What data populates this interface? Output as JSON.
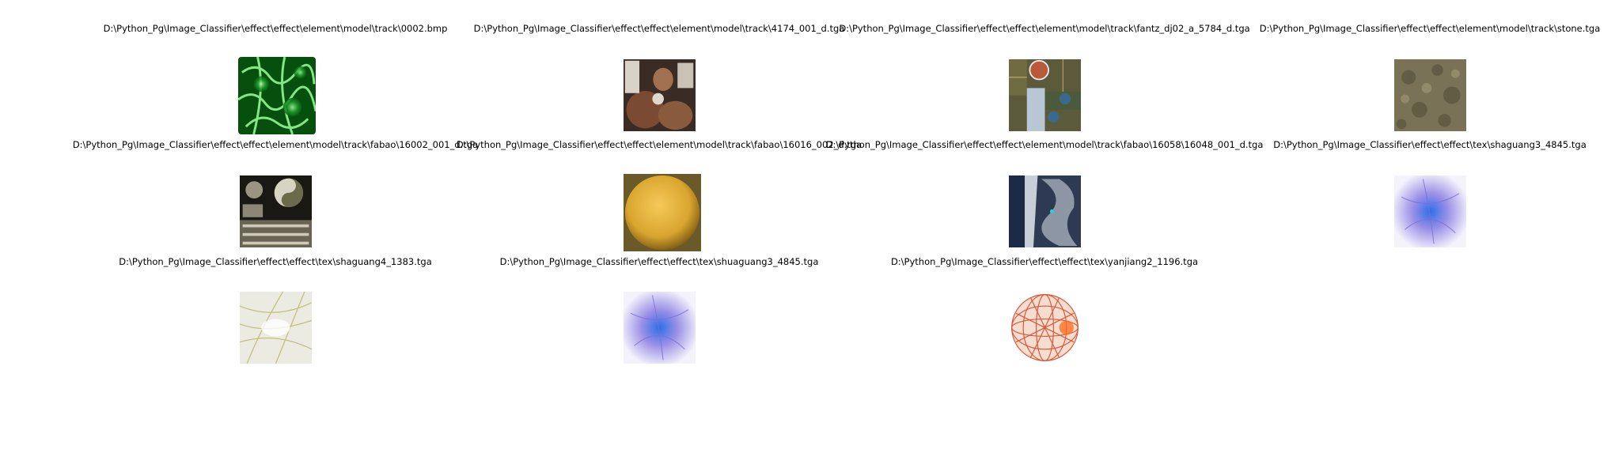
{
  "figure": {
    "items": [
      {
        "label": "D:\\Python_Pg\\Image_Classifier\\effect\\effect\\element\\model\\track\\0002.bmp",
        "thumbnail": "green-caustic-texture"
      },
      {
        "label": "D:\\Python_Pg\\Image_Classifier\\effect\\effect\\element\\model\\track\\4174_001_d.tga",
        "thumbnail": "pottery-atlas-texture"
      },
      {
        "label": "D:\\Python_Pg\\Image_Classifier\\effect\\effect\\element\\model\\track\\fantz_dj02_a_5784_d.tga",
        "thumbnail": "ornate-tile-atlas-texture"
      },
      {
        "label": "D:\\Python_Pg\\Image_Classifier\\effect\\effect\\element\\model\\track\\stone.tga",
        "thumbnail": "stone-texture"
      },
      {
        "label": "D:\\Python_Pg\\Image_Classifier\\effect\\effect\\element\\model\\track\\fabao\\16002_001_d.tga",
        "thumbnail": "yin-yang-atlas-texture"
      },
      {
        "label": "D:\\Python_Pg\\Image_Classifier\\effect\\effect\\element\\model\\track\\fabao\\16016_002_d.tga",
        "thumbnail": "golden-sphere-texture"
      },
      {
        "label": "D:\\Python_Pg\\Image_Classifier\\effect\\effect\\element\\model\\track\\fabao\\16058\\16048_001_d.tga",
        "thumbnail": "blade-atlas-texture"
      },
      {
        "label": "D:\\Python_Pg\\Image_Classifier\\effect\\effect\\tex\\shaguang3_4845.tga",
        "thumbnail": "blue-glow-texture"
      },
      {
        "label": "D:\\Python_Pg\\Image_Classifier\\effect\\effect\\tex\\shaguang4_1383.tga",
        "thumbnail": "yellow-streak-texture"
      },
      {
        "label": "D:\\Python_Pg\\Image_Classifier\\effect\\effect\\tex\\shuaguang3_4845.tga",
        "thumbnail": "blue-glow-texture"
      },
      {
        "label": "D:\\Python_Pg\\Image_Classifier\\effect\\effect\\tex\\yanjiang2_1196.tga",
        "thumbnail": "orange-lava-net-texture"
      }
    ]
  },
  "colors": {
    "green": "#0f8a1a",
    "gold": "#d9a52e",
    "blue_glow": "#6f7fe0",
    "orange": "#e86a2a"
  }
}
